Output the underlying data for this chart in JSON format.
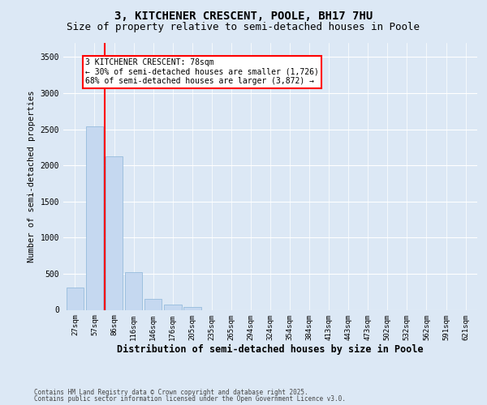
{
  "title1": "3, KITCHENER CRESCENT, POOLE, BH17 7HU",
  "title2": "Size of property relative to semi-detached houses in Poole",
  "xlabel": "Distribution of semi-detached houses by size in Poole",
  "ylabel": "Number of semi-detached properties",
  "categories": [
    "27sqm",
    "57sqm",
    "86sqm",
    "116sqm",
    "146sqm",
    "176sqm",
    "205sqm",
    "235sqm",
    "265sqm",
    "294sqm",
    "324sqm",
    "354sqm",
    "384sqm",
    "413sqm",
    "443sqm",
    "473sqm",
    "502sqm",
    "532sqm",
    "562sqm",
    "591sqm",
    "621sqm"
  ],
  "values": [
    305,
    2540,
    2120,
    520,
    150,
    75,
    40,
    0,
    0,
    0,
    0,
    0,
    0,
    0,
    0,
    0,
    0,
    0,
    0,
    0,
    0
  ],
  "bar_color": "#c5d8f0",
  "bar_edge_color": "#8ab4d8",
  "vline_color": "red",
  "vline_pos": 1.5,
  "annotation_text": "3 KITCHENER CRESCENT: 78sqm\n← 30% of semi-detached houses are smaller (1,726)\n68% of semi-detached houses are larger (3,872) →",
  "annotation_box_color": "white",
  "annotation_box_edge": "red",
  "ylim": [
    0,
    3700
  ],
  "yticks": [
    0,
    500,
    1000,
    1500,
    2000,
    2500,
    3000,
    3500
  ],
  "footer1": "Contains HM Land Registry data © Crown copyright and database right 2025.",
  "footer2": "Contains public sector information licensed under the Open Government Licence v3.0.",
  "bg_color": "#dce8f5",
  "plot_bg": "#dce8f5",
  "grid_color": "white",
  "title_fontsize": 10,
  "subtitle_fontsize": 9,
  "tick_fontsize": 6.5,
  "ylabel_fontsize": 7.5,
  "xlabel_fontsize": 8.5,
  "annotation_fontsize": 7,
  "footer_fontsize": 5.5
}
